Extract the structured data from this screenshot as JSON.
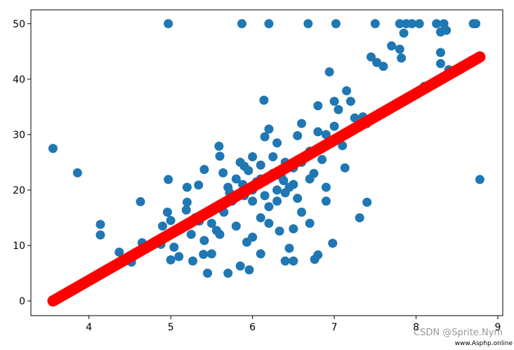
{
  "chart_data": {
    "type": "scatter",
    "xlim": [
      3.29,
      9.06
    ],
    "ylim": [
      -2.65,
      52.5
    ],
    "xticks": [
      4,
      5,
      6,
      7,
      8,
      9
    ],
    "yticks": [
      0,
      10,
      20,
      30,
      40,
      50
    ],
    "annotations": [
      "CSDN @Sprite.Nym",
      "www.Asphp.online"
    ],
    "series": [
      {
        "type": "scatter",
        "color": "#1f77b4",
        "x": [
          3.56,
          3.86,
          4.14,
          4.14,
          4.37,
          4.52,
          4.63,
          4.65,
          4.88,
          4.9,
          4.97,
          4.97,
          4.96,
          5.0,
          5.04,
          5.1,
          5.0,
          5.19,
          5.2,
          5.27,
          5.34,
          5.35,
          5.4,
          5.41,
          5.45,
          5.41,
          5.5,
          5.56,
          5.59,
          5.6,
          5.64,
          5.7,
          5.72,
          5.87,
          5.85,
          5.88,
          5.93,
          5.96,
          5.9,
          6.0,
          6.1,
          6.14,
          6.15,
          6.2,
          6.2,
          6.25,
          6.3,
          6.33,
          6.38,
          6.4,
          6.45,
          6.5,
          6.5,
          6.55,
          6.6,
          6.68,
          6.6,
          6.7,
          6.76,
          6.8,
          6.8,
          6.9,
          6.94,
          6.98,
          7.0,
          7.02,
          7.1,
          7.13,
          7.2,
          7.31,
          7.4,
          7.45,
          7.5,
          7.52,
          7.6,
          7.7,
          7.8,
          7.82,
          7.8,
          7.85,
          7.88,
          7.95,
          8.04,
          8.1,
          8.25,
          8.3,
          8.3,
          8.34,
          8.4,
          8.37,
          8.3,
          8.7,
          8.78,
          8.73,
          7.15,
          7.25,
          7.35,
          6.8,
          6.7,
          6.4,
          6.25,
          6.0,
          5.9,
          6.1,
          6.2,
          6.3,
          6.4,
          6.5,
          5.8,
          5.75,
          5.65,
          5.5,
          5.6,
          5.8,
          6.0,
          6.1,
          5.95,
          6.05,
          6.15,
          6.35,
          6.45,
          6.55,
          6.6,
          6.75,
          6.85,
          6.9,
          7.0,
          7.05,
          7.2,
          7.4,
          6.3,
          6.0,
          5.85,
          6.2,
          5.7,
          5.55,
          5.3,
          5.25,
          6.1,
          6.5,
          6.7,
          6.9,
          5.2
        ],
        "values": [
          27.5,
          23.1,
          13.8,
          11.9,
          8.8,
          7.0,
          17.9,
          10.5,
          10.2,
          13.5,
          50,
          21.9,
          16,
          7.4,
          9.7,
          8.0,
          14.5,
          16.4,
          17.8,
          7.2,
          20.9,
          14.4,
          8.4,
          23.7,
          5.0,
          10.9,
          8.5,
          12.7,
          27.9,
          26.1,
          23.1,
          5.0,
          19.5,
          50,
          6.3,
          21.0,
          10.6,
          5.6,
          24.3,
          18.0,
          22.0,
          36.2,
          29.6,
          50,
          17.0,
          26.0,
          20.0,
          12.6,
          21.7,
          7.2,
          9.5,
          24.0,
          7.2,
          29.8,
          32.0,
          50,
          16.0,
          22.0,
          7.5,
          35.2,
          8.3,
          30.0,
          41.3,
          10.4,
          36.0,
          50,
          28.0,
          24.0,
          36.0,
          15.0,
          17.8,
          44.0,
          50,
          43.0,
          42.3,
          46.0,
          50,
          43.8,
          45.4,
          48.3,
          50,
          50,
          50,
          38.7,
          50,
          48.5,
          44.8,
          50,
          41.7,
          48.8,
          42.8,
          50,
          21.9,
          50,
          37.9,
          33.0,
          33.2,
          30.5,
          27.0,
          25.0,
          23.0,
          20.0,
          19.0,
          15.0,
          14.0,
          18.0,
          19.5,
          21.0,
          22.0,
          18.0,
          16.0,
          14.0,
          12.0,
          13.5,
          11.5,
          24.5,
          23.5,
          21.5,
          19.0,
          22.5,
          20.5,
          18.5,
          25.0,
          23.0,
          25.5,
          20.5,
          31.5,
          34.5,
          30.5,
          32.0,
          28.5,
          26.0,
          25.0,
          31.0,
          20.5,
          17.0,
          15.0,
          12.0,
          8.5,
          13.0,
          14.0,
          18.0,
          20.5
        ]
      },
      {
        "type": "line",
        "color": "#ff0000",
        "x": [
          3.56,
          8.78
        ],
        "values": [
          0,
          44
        ]
      }
    ]
  }
}
